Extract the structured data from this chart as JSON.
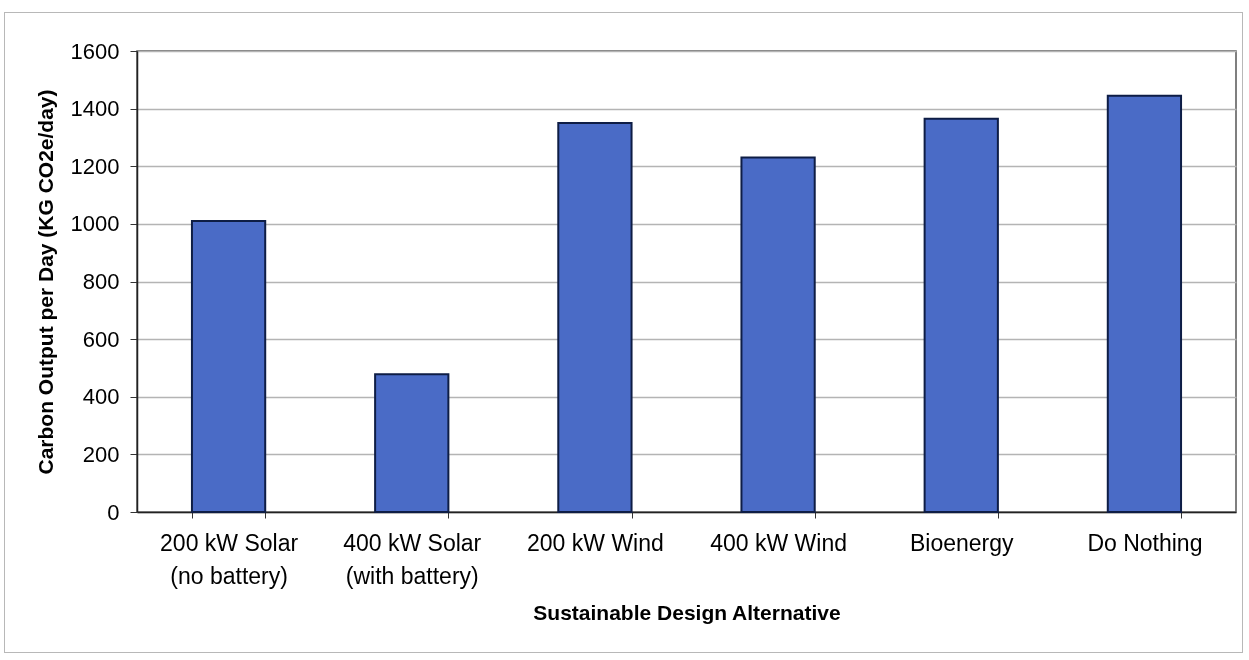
{
  "chart_data": {
    "type": "bar",
    "xlabel": "Sustainable Design Alternative",
    "ylabel": "Carbon Output per Day (KG CO2e/day)",
    "categories": [
      "200 kW Solar (no battery)",
      "400 kW Solar (with battery)",
      "200 kW Wind",
      "400 kW Wind",
      "Bioenergy",
      "Do Nothing"
    ],
    "values": [
      1010,
      478,
      1350,
      1230,
      1365,
      1445
    ],
    "color": "#4a6bc6",
    "ylim": [
      0,
      1600
    ],
    "yticks": [
      0,
      200,
      400,
      600,
      800,
      1000,
      1200,
      1400,
      1600
    ],
    "grid": "y"
  }
}
